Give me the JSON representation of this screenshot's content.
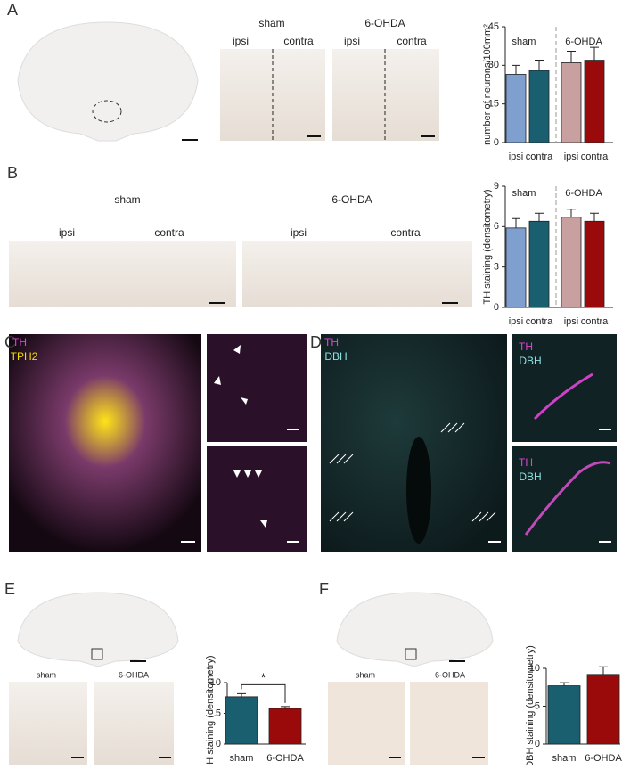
{
  "panel_labels": [
    "A",
    "B",
    "C",
    "D",
    "E",
    "F"
  ],
  "image_labels": {
    "a": [
      "sham",
      "ipsi",
      "contra",
      "6-OHDA",
      "ipsi",
      "contra"
    ],
    "b": [
      "sham",
      "6-OHDA",
      "ipsi",
      "contra",
      "ipsi",
      "contra"
    ],
    "c": [
      "TH",
      "TPH2"
    ],
    "d": [
      "TH",
      "DBH",
      "TH",
      "DBH",
      "TH",
      "DBH"
    ],
    "e": [
      "sham",
      "6-OHDA"
    ],
    "f": [
      "sham",
      "6-OHDA"
    ]
  },
  "chart_data": [
    {
      "type": "bar",
      "y_label": "number of neurons/100mm²",
      "categories": [
        "ipsi",
        "contra",
        "ipsi",
        "contra"
      ],
      "values": [
        26.5,
        28,
        31,
        32
      ],
      "errors": [
        3.5,
        4,
        4.5,
        5
      ],
      "colors": [
        "#7f9fcf",
        "#1a5f70",
        "#c9a0a0",
        "#9b0a0a"
      ],
      "group_labels": [
        "sham",
        "6-OHDA"
      ],
      "ylim": [
        0,
        45
      ],
      "yticks": [
        0,
        15,
        30,
        45
      ]
    },
    {
      "type": "bar",
      "y_label": "TH staining (densitometry)",
      "categories": [
        "ipsi",
        "contra",
        "ipsi",
        "contra"
      ],
      "values": [
        5.9,
        6.4,
        6.7,
        6.4
      ],
      "errors": [
        0.7,
        0.6,
        0.6,
        0.6
      ],
      "colors": [
        "#7f9fcf",
        "#1a5f70",
        "#c9a0a0",
        "#9b0a0a"
      ],
      "group_labels": [
        "sham",
        "6-OHDA"
      ],
      "ylim": [
        0,
        9
      ],
      "yticks": [
        0,
        3,
        6,
        9
      ]
    },
    {
      "type": "bar",
      "y_label": "TH staining (densitometry)",
      "categories": [
        "sham",
        "6-OHDA"
      ],
      "values": [
        7.7,
        5.8
      ],
      "errors": [
        0.5,
        0.3
      ],
      "colors": [
        "#1a5f70",
        "#9b0a0a"
      ],
      "significance": "*",
      "ylim": [
        0,
        10
      ],
      "yticks": [
        0,
        5,
        10
      ]
    },
    {
      "type": "bar",
      "y_label": "DBH staining (densitometry)",
      "categories": [
        "sham",
        "6-OHDA"
      ],
      "values": [
        7.7,
        9.2
      ],
      "errors": [
        0.4,
        1.0
      ],
      "colors": [
        "#1a5f70",
        "#9b0a0a"
      ],
      "ylim": [
        0,
        10
      ],
      "yticks": [
        0,
        5,
        10
      ]
    }
  ]
}
